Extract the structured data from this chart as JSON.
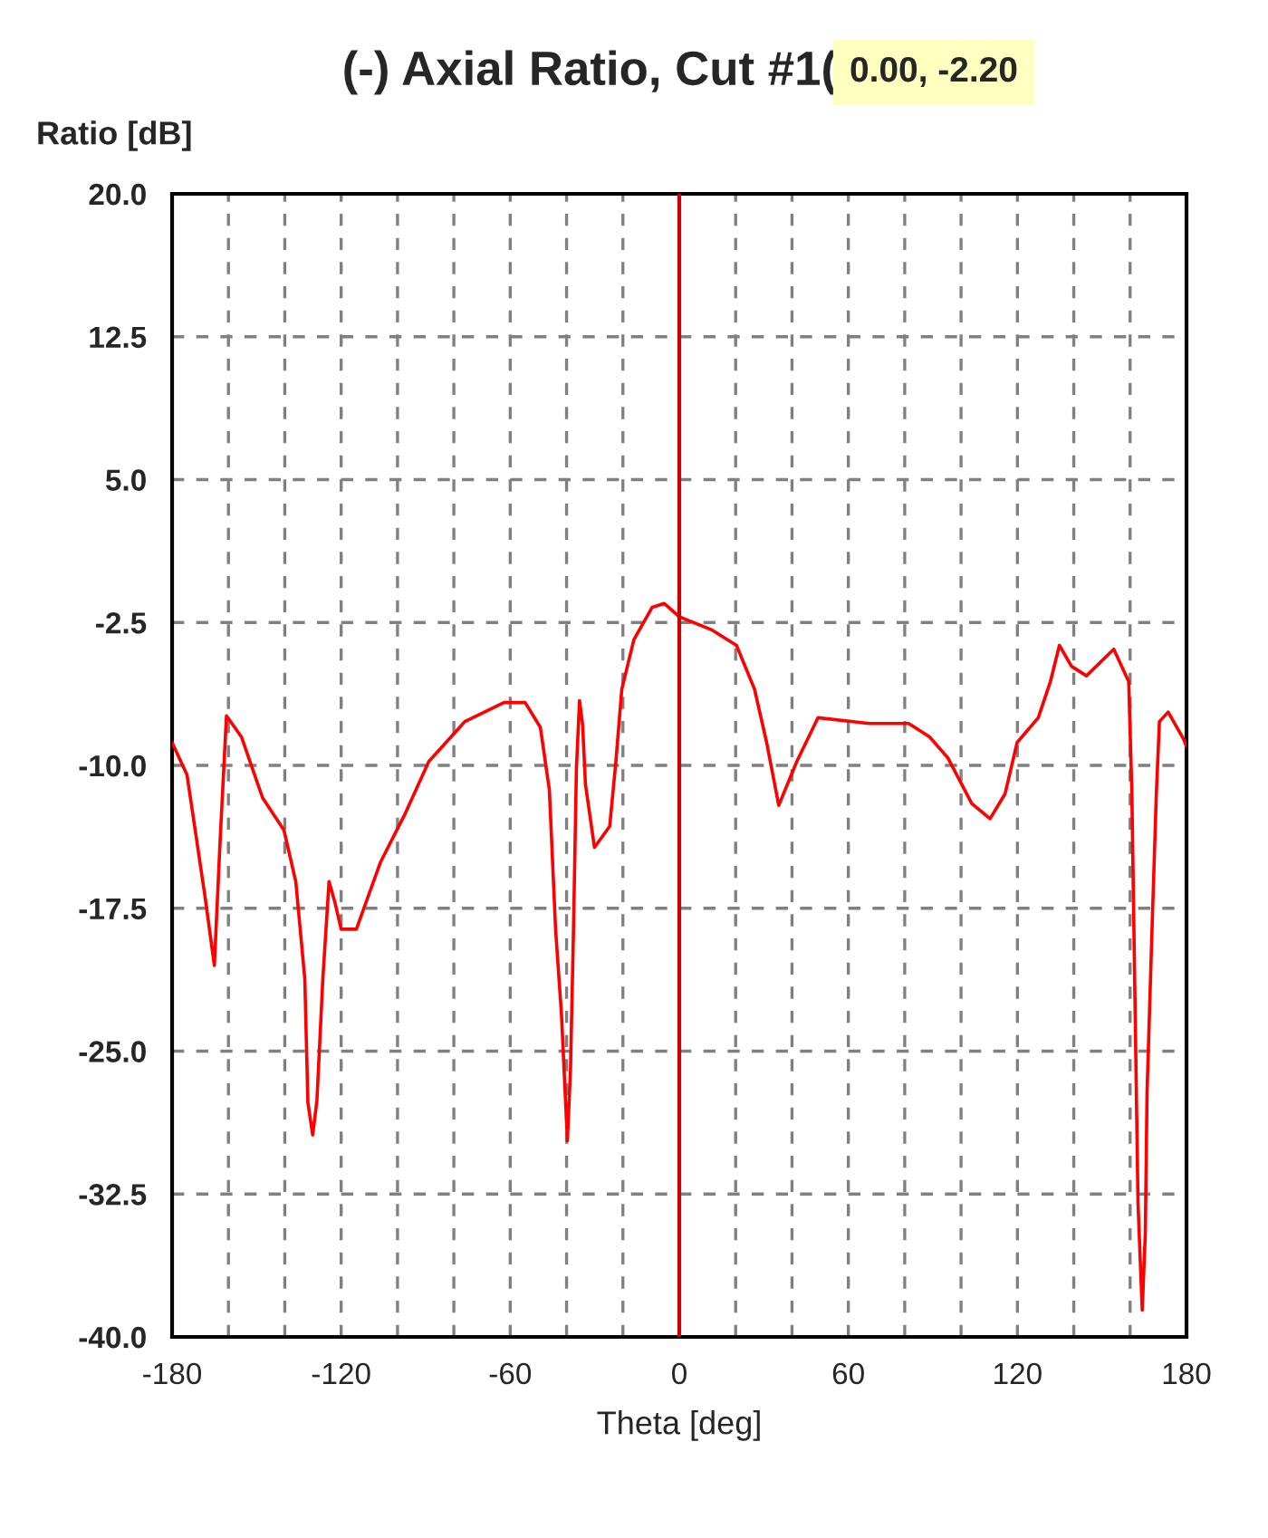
{
  "chart_data": {
    "type": "line",
    "title": "(-) Axial Ratio, Cut #1(",
    "xlabel": "Theta [deg]",
    "ylabel": "Ratio [dB]",
    "annotations": [
      "0.00, -2.20"
    ],
    "xlim": [
      -180,
      180
    ],
    "xticks": [
      -180,
      {
        "value": -160,
        "label": null
      },
      {
        "value": -140,
        "label": null
      },
      -120,
      {
        "value": -100,
        "label": null
      },
      {
        "value": -80,
        "label": null
      },
      -60,
      {
        "value": -40,
        "label": null
      },
      {
        "value": -20,
        "label": null
      },
      0,
      {
        "value": 20,
        "label": null
      },
      {
        "value": 40,
        "label": null
      },
      60,
      {
        "value": 80,
        "label": null
      },
      {
        "value": 100,
        "label": null
      },
      120,
      {
        "value": 140,
        "label": null
      },
      {
        "value": 160,
        "label": null
      },
      180
    ],
    "ylim": [
      -40,
      20
    ],
    "yticks": [
      {
        "value": 20,
        "label": "20.0"
      },
      12.5,
      {
        "value": 5,
        "label": "5.0"
      },
      -2.5,
      {
        "value": -10,
        "label": "-10.0"
      },
      -17.5,
      {
        "value": -25,
        "label": "-25.0"
      },
      -32.5,
      {
        "value": -40,
        "label": "-40.0"
      }
    ],
    "grid": true,
    "legend": false,
    "marker": "none",
    "line_style": "solid",
    "ref_lines": [
      {
        "axis": "x",
        "value": 0,
        "label": null,
        "color": "#cc0000",
        "line_style": "solid"
      }
    ],
    "series": [
      {
        "color": "#ff0000",
        "x": [
          -180,
          -174.7,
          -168.2,
          -165,
          -162.9,
          -160.7,
          -155.4,
          -147.9,
          -140.3,
          -136.1,
          -132.9,
          -131.8,
          -130.1,
          -128.6,
          -126.5,
          -124.3,
          -122.2,
          -120,
          -114.6,
          -106.1,
          -97.5,
          -88.9,
          -76.1,
          -62.2,
          -54.7,
          -49.3,
          -46.1,
          -43.9,
          -41.8,
          -39.7,
          -38.6,
          -37.5,
          -36.5,
          -35.4,
          -34.3,
          -33.3,
          -30.1,
          -24.7,
          -22.5,
          -20.4,
          -16.1,
          -9.6,
          -5.4,
          0,
          11.7,
          20.3,
          26.7,
          31,
          35.3,
          41.7,
          49.2,
          67.4,
          81.4,
          88.8,
          95.3,
          103.8,
          110.3,
          115.6,
          119.9,
          127.4,
          131.7,
          134.9,
          139.2,
          144.5,
          154.2,
          159.5,
          160.6,
          161.7,
          162.8,
          164.3,
          165.4,
          166,
          167.6,
          169.3,
          170.4,
          173.5,
          178.9,
          180
        ],
        "values": [
          -8.8,
          -10.5,
          -17.0,
          -20.5,
          -13.8,
          -7.4,
          -8.5,
          -11.7,
          -13.4,
          -16.1,
          -21.2,
          -27.7,
          -29.4,
          -27.6,
          -21.2,
          -16.1,
          -17.2,
          -18.6,
          -18.6,
          -15.1,
          -12.6,
          -9.8,
          -7.7,
          -6.7,
          -6.7,
          -8.0,
          -11.3,
          -18.6,
          -23.1,
          -29.7,
          -25.9,
          -18.3,
          -10.1,
          -6.6,
          -7.9,
          -11.0,
          -14.3,
          -13.2,
          -9.8,
          -6.0,
          -3.4,
          -1.7,
          -1.5,
          -2.2,
          -2.9,
          -3.7,
          -6.0,
          -8.8,
          -12.1,
          -9.8,
          -7.5,
          -7.8,
          -7.8,
          -8.5,
          -9.6,
          -12.0,
          -12.8,
          -11.5,
          -8.8,
          -7.5,
          -5.6,
          -3.7,
          -4.8,
          -5.3,
          -3.9,
          -5.6,
          -11.3,
          -22.1,
          -33.0,
          -38.6,
          -34.5,
          -27.2,
          -19.4,
          -11.5,
          -7.7,
          -7.2,
          -8.6,
          -9.0
        ]
      }
    ]
  }
}
